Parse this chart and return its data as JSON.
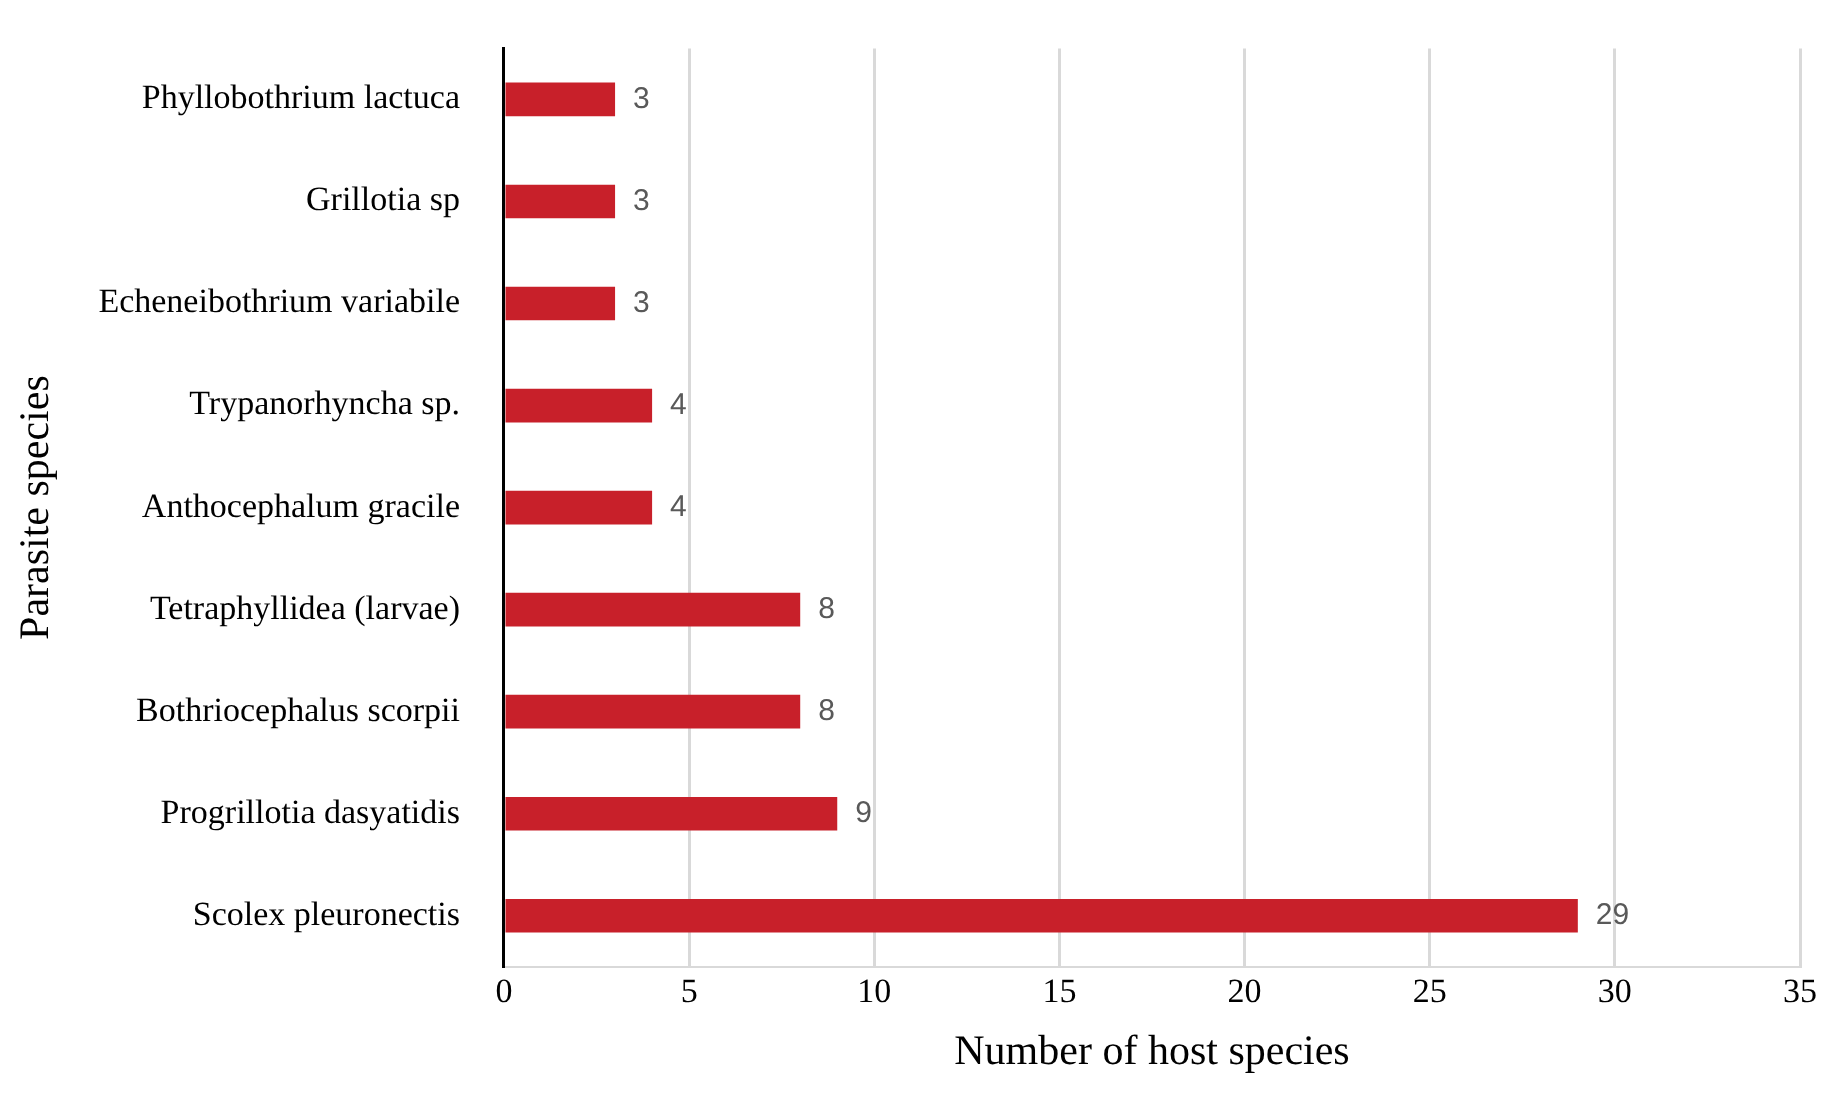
{
  "chart_data": {
    "type": "bar",
    "orientation": "horizontal",
    "xlabel": "Number of host species",
    "ylabel": "Parasite species",
    "categories": [
      "Phyllobothrium lactuca",
      "Grillotia sp",
      "Echeneibothrium variabile",
      "Trypanorhyncha sp.",
      "Anthocephalum gracile",
      "Tetraphyllidea (larvae)",
      "Bothriocephalus scorpii",
      "Progrillotia dasyatidis",
      "Scolex pleuronectis"
    ],
    "values": [
      3,
      3,
      3,
      4,
      4,
      8,
      8,
      9,
      29
    ],
    "color": "#c8202a",
    "xlim": [
      0,
      35
    ],
    "xticks": [
      0,
      5,
      10,
      15,
      20,
      25,
      30,
      35
    ],
    "grid": "x",
    "legend": false,
    "data_labels": true
  }
}
